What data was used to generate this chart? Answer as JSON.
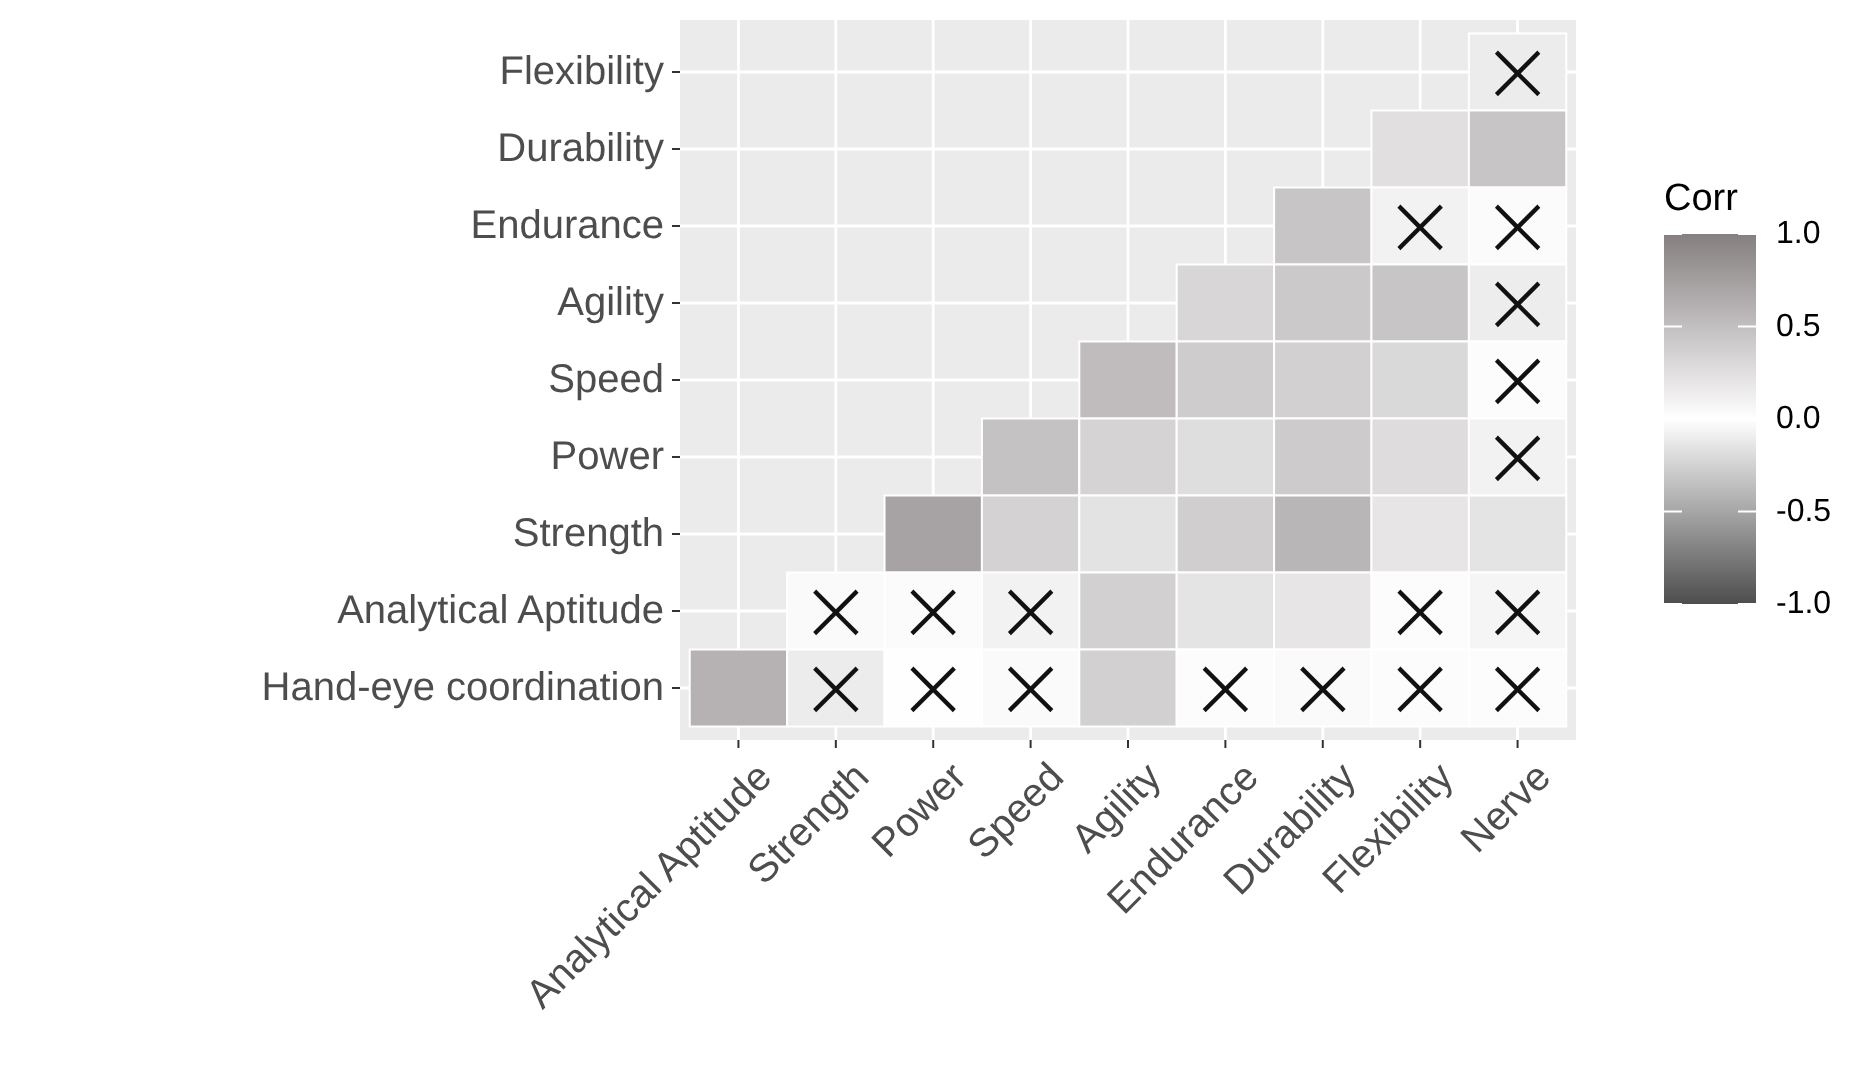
{
  "chart_data": {
    "type": "heatmap",
    "clabel": "Corr",
    "grid": true,
    "categories": [
      "Analytical Aptitude",
      "Strength",
      "Power",
      "Speed",
      "Agility",
      "Endurance",
      "Durability",
      "Flexibility",
      "Nerve"
    ],
    "y_categories": [
      "Flexibility",
      "Durability",
      "Endurance",
      "Agility",
      "Speed",
      "Power",
      "Strength",
      "Analytical Aptitude",
      "Hand-eye coordination"
    ],
    "cells": [
      [
        null,
        null,
        null,
        null,
        null,
        null,
        null,
        null,
        0.15
      ],
      [
        null,
        null,
        null,
        null,
        null,
        null,
        null,
        0.25,
        0.45
      ],
      [
        null,
        null,
        null,
        null,
        null,
        null,
        0.45,
        0.1,
        0.03
      ],
      [
        null,
        null,
        null,
        null,
        null,
        0.32,
        0.42,
        0.45,
        0.14
      ],
      [
        null,
        null,
        null,
        null,
        0.52,
        0.4,
        0.37,
        0.3,
        0.02
      ],
      [
        null,
        null,
        null,
        0.48,
        0.34,
        0.26,
        0.41,
        0.27,
        0.1
      ],
      [
        null,
        null,
        0.72,
        0.35,
        0.22,
        0.38,
        0.57,
        0.2,
        0.21
      ],
      [
        null,
        0.04,
        0.03,
        0.1,
        0.37,
        0.21,
        0.2,
        0.02,
        0.08
      ],
      [
        0.6,
        0.15,
        0.01,
        0.04,
        0.37,
        0.02,
        0.04,
        0.02,
        0.02
      ]
    ],
    "cell_labels": [
      [
        null,
        null,
        null,
        null,
        null,
        null,
        null,
        null,
        "×"
      ],
      [
        null,
        null,
        null,
        null,
        null,
        null,
        null,
        null,
        null
      ],
      [
        null,
        null,
        null,
        null,
        null,
        null,
        null,
        "×",
        "×"
      ],
      [
        null,
        null,
        null,
        null,
        null,
        null,
        null,
        null,
        "×"
      ],
      [
        null,
        null,
        null,
        null,
        null,
        null,
        null,
        null,
        "×"
      ],
      [
        null,
        null,
        null,
        null,
        null,
        null,
        null,
        null,
        "×"
      ],
      [
        null,
        null,
        null,
        null,
        null,
        null,
        null,
        null,
        null
      ],
      [
        null,
        "×",
        "×",
        "×",
        null,
        null,
        null,
        "×",
        "×"
      ],
      [
        null,
        "×",
        "×",
        "×",
        null,
        "×",
        "×",
        "×",
        "×"
      ]
    ],
    "clim": [
      -1,
      1
    ],
    "cticks": [
      {
        "value": 1,
        "label": "1.0"
      },
      {
        "value": 0.5,
        "label": "0.5"
      },
      {
        "value": 0,
        "label": "0.0"
      },
      {
        "value": -0.5,
        "label": "-0.5"
      },
      {
        "value": -1,
        "label": "-1.0"
      }
    ]
  }
}
